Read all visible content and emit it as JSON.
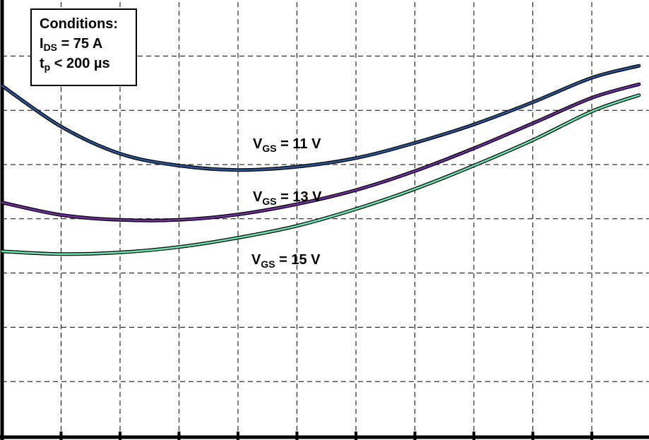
{
  "chart_data": {
    "type": "line",
    "title": "",
    "xlabel": "",
    "ylabel": "",
    "x_range": [
      0,
      11
    ],
    "y_range": [
      0,
      8
    ],
    "x_grid_count": 11,
    "y_grid_count": 8,
    "grid": true,
    "grid_style": "dashed",
    "conditions": {
      "heading": "Conditions:",
      "line1": {
        "main": "I",
        "sub": "DS",
        "rest": " = 75 A"
      },
      "line2": {
        "main": "t",
        "sub": "p",
        "rest": " < 200 µs"
      }
    },
    "series": [
      {
        "name": "VGS = 11 V",
        "label": {
          "main": "V",
          "sub": "GS",
          "rest": " = 11 V"
        },
        "color": "#2b5797",
        "x": [
          0,
          1,
          2,
          3,
          4,
          5,
          6,
          7,
          8,
          9,
          10,
          10.8
        ],
        "y": [
          6.45,
          5.7,
          5.2,
          4.98,
          4.9,
          4.96,
          5.12,
          5.4,
          5.74,
          6.15,
          6.6,
          6.82
        ]
      },
      {
        "name": "VGS = 13 V",
        "label": {
          "main": "V",
          "sub": "GS",
          "rest": " = 13 V"
        },
        "color": "#7030a0",
        "x": [
          0,
          1,
          2,
          3,
          4,
          5,
          6,
          7,
          8,
          9,
          10,
          10.8
        ],
        "y": [
          4.3,
          4.07,
          3.98,
          3.98,
          4.08,
          4.27,
          4.53,
          4.88,
          5.3,
          5.76,
          6.23,
          6.48
        ]
      },
      {
        "name": "VGS = 15 V",
        "label": {
          "main": "V",
          "sub": "GS",
          "rest": " = 15 V"
        },
        "color": "#66e8b0",
        "x": [
          0,
          1,
          2,
          3,
          4,
          5,
          6,
          7,
          8,
          9,
          10,
          10.8
        ],
        "y": [
          3.4,
          3.35,
          3.38,
          3.48,
          3.65,
          3.87,
          4.18,
          4.55,
          4.98,
          5.45,
          5.98,
          6.28
        ]
      }
    ]
  }
}
